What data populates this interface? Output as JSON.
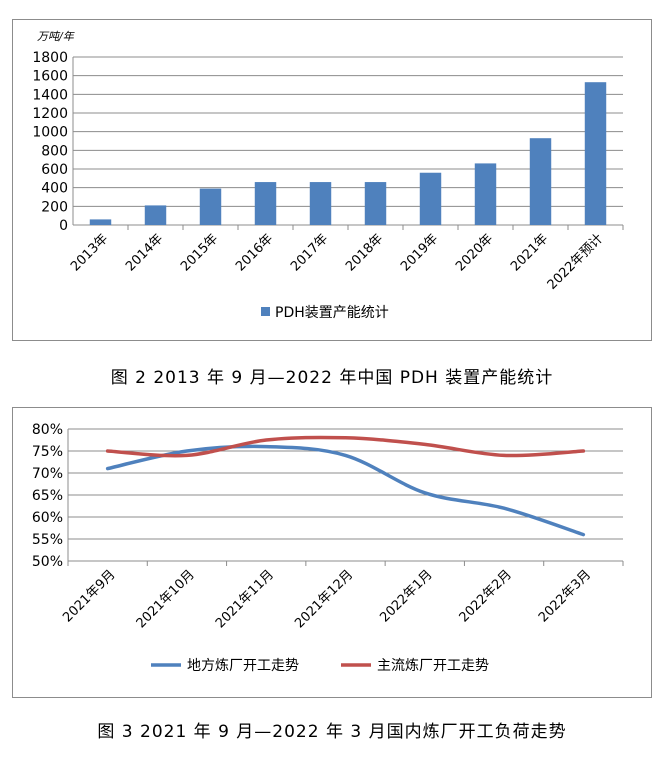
{
  "figure2": {
    "caption": "图 2  2013 年 9 月—2022 年中国 PDH 装置产能统计",
    "chart_data": {
      "type": "bar",
      "unit_label": "万吨/年",
      "categories": [
        "2013年",
        "2014年",
        "2015年",
        "2016年",
        "2017年",
        "2018年",
        "2019年",
        "2020年",
        "2021年",
        "2022年预计"
      ],
      "series": [
        {
          "name": "PDH装置产能统计",
          "values": [
            60,
            210,
            390,
            460,
            460,
            460,
            560,
            660,
            930,
            1530
          ]
        }
      ],
      "ylim": [
        0,
        1800
      ],
      "yticks": [
        0,
        200,
        400,
        600,
        800,
        1000,
        1200,
        1400,
        1600,
        1800
      ],
      "grid": true,
      "legend": "bottom",
      "colors": {
        "bar": "#4f81bd"
      }
    }
  },
  "figure3": {
    "caption": "图 3  2021 年 9 月—2022 年 3 月国内炼厂开工负荷走势",
    "chart_data": {
      "type": "line",
      "categories": [
        "2021年9月",
        "2021年10月",
        "2021年11月",
        "2021年12月",
        "2022年1月",
        "2022年2月",
        "2022年3月"
      ],
      "series": [
        {
          "name": "地方炼厂开工走势",
          "color": "#4f81bd",
          "values": [
            71.0,
            75.0,
            76.0,
            74.0,
            65.5,
            62.0,
            56.0
          ]
        },
        {
          "name": "主流炼厂开工走势",
          "color": "#c0504d",
          "values": [
            75.0,
            74.0,
            77.5,
            78.0,
            76.5,
            74.0,
            75.0
          ]
        }
      ],
      "ylim": [
        50,
        80
      ],
      "yticks": [
        "50%",
        "55%",
        "60%",
        "65%",
        "70%",
        "75%",
        "80%"
      ],
      "grid": true,
      "legend": "bottom"
    }
  }
}
